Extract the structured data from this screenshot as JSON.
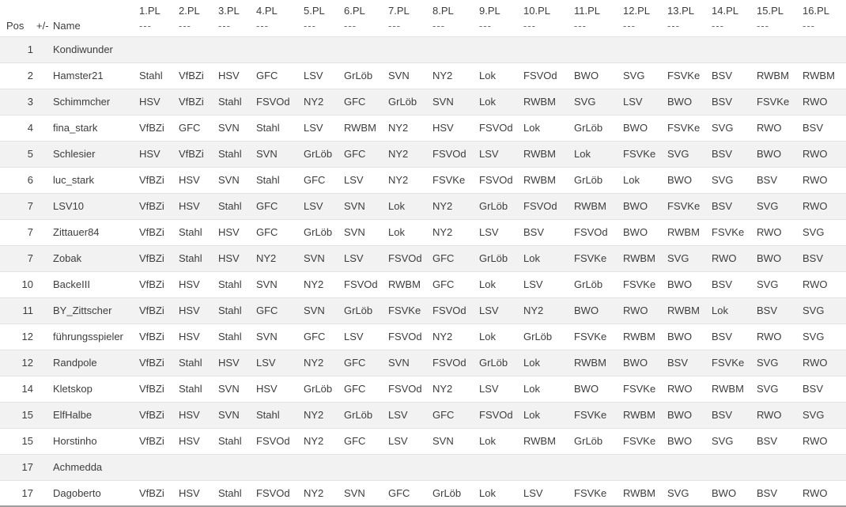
{
  "header": {
    "pos": "Pos",
    "plus_minus": "+/-",
    "name": "Name",
    "pl_columns": [
      {
        "label": "1.PL",
        "result": "---"
      },
      {
        "label": "2.PL",
        "result": "---"
      },
      {
        "label": "3.PL",
        "result": "---"
      },
      {
        "label": "4.PL",
        "result": "---"
      },
      {
        "label": "5.PL",
        "result": "---"
      },
      {
        "label": "6.PL",
        "result": "---"
      },
      {
        "label": "7.PL",
        "result": "---"
      },
      {
        "label": "8.PL",
        "result": "---"
      },
      {
        "label": "9.PL",
        "result": "---"
      },
      {
        "label": "10.PL",
        "result": "---"
      },
      {
        "label": "11.PL",
        "result": "---"
      },
      {
        "label": "12.PL",
        "result": "---"
      },
      {
        "label": "13.PL",
        "result": "---"
      },
      {
        "label": "14.PL",
        "result": "---"
      },
      {
        "label": "15.PL",
        "result": "---"
      },
      {
        "label": "16.PL",
        "result": "---"
      }
    ]
  },
  "rows": [
    {
      "pos": "1",
      "change": "",
      "name": "Kondiwunder",
      "tips": [
        "",
        "",
        "",
        "",
        "",
        "",
        "",
        "",
        "",
        "",
        "",
        "",
        "",
        "",
        "",
        ""
      ]
    },
    {
      "pos": "2",
      "change": "",
      "name": "Hamster21",
      "tips": [
        "Stahl",
        "VfBZi",
        "HSV",
        "GFC",
        "LSV",
        "GrLöb",
        "SVN",
        "NY2",
        "Lok",
        "FSVOd",
        "BWO",
        "SVG",
        "FSVKe",
        "BSV",
        "RWBM",
        "RWBM"
      ]
    },
    {
      "pos": "3",
      "change": "",
      "name": "Schimmcher",
      "tips": [
        "HSV",
        "VfBZi",
        "Stahl",
        "FSVOd",
        "NY2",
        "GFC",
        "GrLöb",
        "SVN",
        "Lok",
        "RWBM",
        "SVG",
        "LSV",
        "BWO",
        "BSV",
        "FSVKe",
        "RWO"
      ]
    },
    {
      "pos": "4",
      "change": "",
      "name": "fina_stark",
      "tips": [
        "VfBZi",
        "GFC",
        "SVN",
        "Stahl",
        "LSV",
        "RWBM",
        "NY2",
        "HSV",
        "FSVOd",
        "Lok",
        "GrLöb",
        "BWO",
        "FSVKe",
        "SVG",
        "RWO",
        "BSV"
      ]
    },
    {
      "pos": "5",
      "change": "",
      "name": "Schlesier",
      "tips": [
        "HSV",
        "VfBZi",
        "Stahl",
        "SVN",
        "GrLöb",
        "GFC",
        "NY2",
        "FSVOd",
        "LSV",
        "RWBM",
        "Lok",
        "FSVKe",
        "SVG",
        "BSV",
        "BWO",
        "RWO"
      ]
    },
    {
      "pos": "6",
      "change": "",
      "name": "luc_stark",
      "tips": [
        "VfBZi",
        "HSV",
        "SVN",
        "Stahl",
        "GFC",
        "LSV",
        "NY2",
        "FSVKe",
        "FSVOd",
        "RWBM",
        "GrLöb",
        "Lok",
        "BWO",
        "SVG",
        "BSV",
        "RWO"
      ]
    },
    {
      "pos": "7",
      "change": "",
      "name": "LSV10",
      "tips": [
        "VfBZi",
        "HSV",
        "Stahl",
        "GFC",
        "LSV",
        "SVN",
        "Lok",
        "NY2",
        "GrLöb",
        "FSVOd",
        "RWBM",
        "BWO",
        "FSVKe",
        "BSV",
        "SVG",
        "RWO"
      ]
    },
    {
      "pos": "7",
      "change": "",
      "name": "Zittauer84",
      "tips": [
        "VfBZi",
        "Stahl",
        "HSV",
        "GFC",
        "GrLöb",
        "SVN",
        "Lok",
        "NY2",
        "LSV",
        "BSV",
        "FSVOd",
        "BWO",
        "RWBM",
        "FSVKe",
        "RWO",
        "SVG"
      ]
    },
    {
      "pos": "7",
      "change": "",
      "name": "Zobak",
      "tips": [
        "VfBZi",
        "Stahl",
        "HSV",
        "NY2",
        "SVN",
        "LSV",
        "FSVOd",
        "GFC",
        "GrLöb",
        "Lok",
        "FSVKe",
        "RWBM",
        "SVG",
        "RWO",
        "BWO",
        "BSV"
      ]
    },
    {
      "pos": "10",
      "change": "",
      "name": "BackeIII",
      "tips": [
        "VfBZi",
        "HSV",
        "Stahl",
        "SVN",
        "NY2",
        "FSVOd",
        "RWBM",
        "GFC",
        "Lok",
        "LSV",
        "GrLöb",
        "FSVKe",
        "BWO",
        "BSV",
        "SVG",
        "RWO"
      ]
    },
    {
      "pos": "11",
      "change": "",
      "name": "BY_Zittscher",
      "tips": [
        "VfBZi",
        "HSV",
        "Stahl",
        "GFC",
        "SVN",
        "GrLöb",
        "FSVKe",
        "FSVOd",
        "LSV",
        "NY2",
        "BWO",
        "RWO",
        "RWBM",
        "Lok",
        "BSV",
        "SVG"
      ]
    },
    {
      "pos": "12",
      "change": "",
      "name": "führungsspieler",
      "tips": [
        "VfBZi",
        "HSV",
        "Stahl",
        "SVN",
        "GFC",
        "LSV",
        "FSVOd",
        "NY2",
        "Lok",
        "GrLöb",
        "FSVKe",
        "RWBM",
        "BWO",
        "BSV",
        "RWO",
        "SVG"
      ]
    },
    {
      "pos": "12",
      "change": "",
      "name": "Randpole",
      "tips": [
        "VfBZi",
        "Stahl",
        "HSV",
        "LSV",
        "NY2",
        "GFC",
        "SVN",
        "FSVOd",
        "GrLöb",
        "Lok",
        "RWBM",
        "BWO",
        "BSV",
        "FSVKe",
        "SVG",
        "RWO"
      ]
    },
    {
      "pos": "14",
      "change": "",
      "name": "Kletskop",
      "tips": [
        "VfBZi",
        "Stahl",
        "SVN",
        "HSV",
        "GrLöb",
        "GFC",
        "FSVOd",
        "NY2",
        "LSV",
        "Lok",
        "BWO",
        "FSVKe",
        "RWO",
        "RWBM",
        "SVG",
        "BSV"
      ]
    },
    {
      "pos": "15",
      "change": "",
      "name": "ElfHalbe",
      "tips": [
        "VfBZi",
        "HSV",
        "SVN",
        "Stahl",
        "NY2",
        "GrLöb",
        "LSV",
        "GFC",
        "FSVOd",
        "Lok",
        "FSVKe",
        "RWBM",
        "BWO",
        "BSV",
        "RWO",
        "SVG"
      ]
    },
    {
      "pos": "15",
      "change": "",
      "name": "Horstinho",
      "tips": [
        "VfBZi",
        "HSV",
        "Stahl",
        "FSVOd",
        "NY2",
        "GFC",
        "LSV",
        "SVN",
        "Lok",
        "RWBM",
        "GrLöb",
        "FSVKe",
        "BWO",
        "SVG",
        "BSV",
        "RWO"
      ]
    },
    {
      "pos": "17",
      "change": "",
      "name": "Achmedda",
      "tips": [
        "",
        "",
        "",
        "",
        "",
        "",
        "",
        "",
        "",
        "",
        "",
        "",
        "",
        "",
        "",
        ""
      ]
    },
    {
      "pos": "17",
      "change": "",
      "name": "Dagoberto",
      "tips": [
        "VfBZi",
        "HSV",
        "Stahl",
        "FSVOd",
        "NY2",
        "SVN",
        "GFC",
        "GrLöb",
        "Lok",
        "LSV",
        "FSVKe",
        "RWBM",
        "SVG",
        "BWO",
        "BSV",
        "RWO"
      ]
    }
  ],
  "colors": {
    "row_stripe": "#f2f2f2",
    "row_border": "#e3e3e3",
    "text": "#3d3d3d",
    "muted_text": "#6b6b6b",
    "bottom_border": "#9e9e9e"
  }
}
